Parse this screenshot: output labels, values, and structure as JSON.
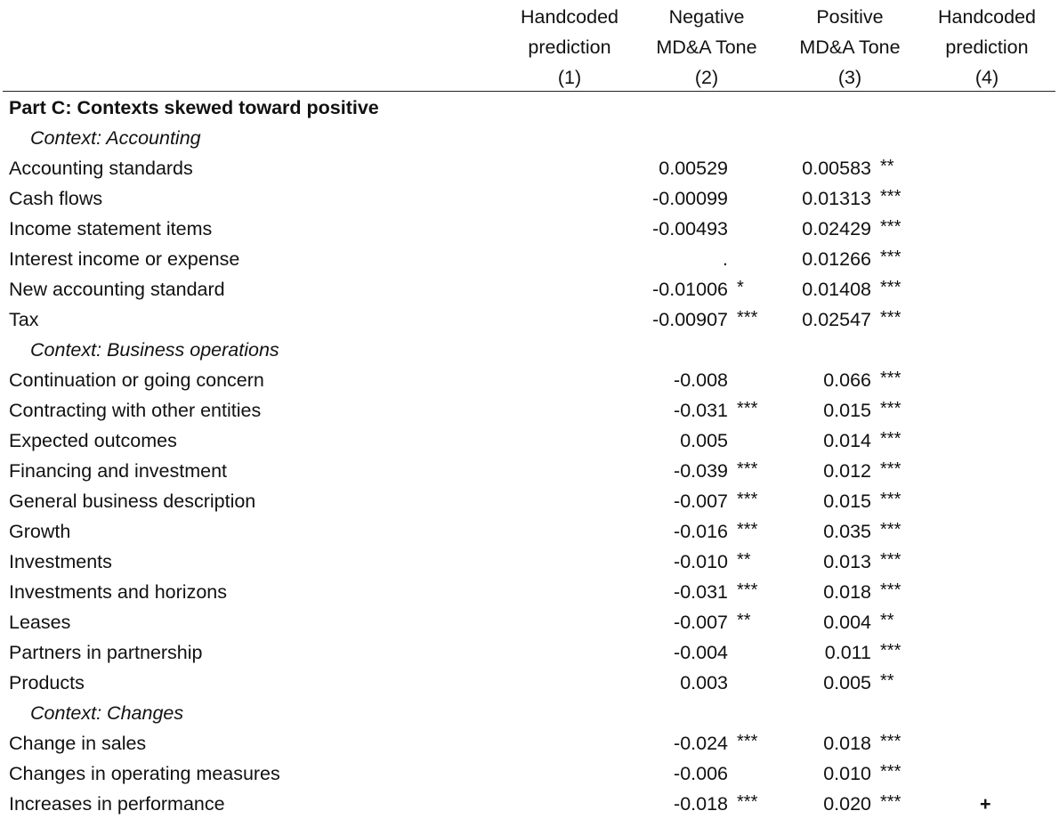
{
  "header": {
    "col1": {
      "line1": "Handcoded",
      "line2": "prediction",
      "line3": "(1)"
    },
    "col2": {
      "line1": "Negative",
      "line2": "MD&A Tone",
      "line3": "(2)"
    },
    "col3": {
      "line1": "Positive",
      "line2": "MD&A Tone",
      "line3": "(3)"
    },
    "col4": {
      "line1": "Handcoded",
      "line2": "prediction",
      "line3": "(4)"
    }
  },
  "rows": [
    {
      "label": "Part C: Contexts skewed toward positive",
      "kind": "section",
      "neg": "",
      "neg_stars": "",
      "pos": "",
      "pos_stars": "",
      "pred": ""
    },
    {
      "label": "Context: Accounting",
      "kind": "context",
      "neg": "",
      "neg_stars": "",
      "pos": "",
      "pos_stars": "",
      "pred": ""
    },
    {
      "label": "Accounting standards",
      "kind": "item",
      "neg": "0.00529",
      "neg_stars": "",
      "pos": "0.00583",
      "pos_stars": "**",
      "pred": ""
    },
    {
      "label": "Cash flows",
      "kind": "item",
      "neg": "-0.00099",
      "neg_stars": "",
      "pos": "0.01313",
      "pos_stars": "***",
      "pred": ""
    },
    {
      "label": "Income statement items",
      "kind": "item",
      "neg": "-0.00493",
      "neg_stars": "",
      "pos": "0.02429",
      "pos_stars": "***",
      "pred": ""
    },
    {
      "label": "Interest income or expense",
      "kind": "item",
      "neg": ".",
      "neg_stars": "",
      "pos": "0.01266",
      "pos_stars": "***",
      "pred": ""
    },
    {
      "label": "New accounting standard",
      "kind": "item",
      "neg": "-0.01006",
      "neg_stars": "*",
      "pos": "0.01408",
      "pos_stars": "***",
      "pred": ""
    },
    {
      "label": "Tax",
      "kind": "item",
      "neg": "-0.00907",
      "neg_stars": "***",
      "pos": "0.02547",
      "pos_stars": "***",
      "pred": ""
    },
    {
      "label": "Context: Business operations",
      "kind": "context",
      "neg": "",
      "neg_stars": "",
      "pos": "",
      "pos_stars": "",
      "pred": ""
    },
    {
      "label": "Continuation or going concern",
      "kind": "item",
      "neg": "-0.008",
      "neg_stars": "",
      "pos": "0.066",
      "pos_stars": "***",
      "pred": ""
    },
    {
      "label": "Contracting with other entities",
      "kind": "item",
      "neg": "-0.031",
      "neg_stars": "***",
      "pos": "0.015",
      "pos_stars": "***",
      "pred": ""
    },
    {
      "label": "Expected outcomes",
      "kind": "item",
      "neg": "0.005",
      "neg_stars": "",
      "pos": "0.014",
      "pos_stars": "***",
      "pred": ""
    },
    {
      "label": "Financing and investment",
      "kind": "item",
      "neg": "-0.039",
      "neg_stars": "***",
      "pos": "0.012",
      "pos_stars": "***",
      "pred": ""
    },
    {
      "label": "General business description",
      "kind": "item",
      "neg": "-0.007",
      "neg_stars": "***",
      "pos": "0.015",
      "pos_stars": "***",
      "pred": ""
    },
    {
      "label": "Growth",
      "kind": "item",
      "neg": "-0.016",
      "neg_stars": "***",
      "pos": "0.035",
      "pos_stars": "***",
      "pred": ""
    },
    {
      "label": "Investments",
      "kind": "item",
      "neg": "-0.010",
      "neg_stars": "**",
      "pos": "0.013",
      "pos_stars": "***",
      "pred": ""
    },
    {
      "label": "Investments and horizons",
      "kind": "item",
      "neg": "-0.031",
      "neg_stars": "***",
      "pos": "0.018",
      "pos_stars": "***",
      "pred": ""
    },
    {
      "label": "Leases",
      "kind": "item",
      "neg": "-0.007",
      "neg_stars": "**",
      "pos": "0.004",
      "pos_stars": "**",
      "pred": ""
    },
    {
      "label": "Partners in partnership",
      "kind": "item",
      "neg": "-0.004",
      "neg_stars": "",
      "pos": "0.011",
      "pos_stars": "***",
      "pred": ""
    },
    {
      "label": "Products",
      "kind": "item",
      "neg": "0.003",
      "neg_stars": "",
      "pos": "0.005",
      "pos_stars": "**",
      "pred": ""
    },
    {
      "label": "Context: Changes",
      "kind": "context",
      "neg": "",
      "neg_stars": "",
      "pos": "",
      "pos_stars": "",
      "pred": ""
    },
    {
      "label": "Change in sales",
      "kind": "item",
      "neg": "-0.024",
      "neg_stars": "***",
      "pos": "0.018",
      "pos_stars": "***",
      "pred": ""
    },
    {
      "label": "Changes in operating measures",
      "kind": "item",
      "neg": "-0.006",
      "neg_stars": "",
      "pos": "0.010",
      "pos_stars": "***",
      "pred": ""
    },
    {
      "label": "Increases in performance",
      "kind": "item",
      "neg": "-0.018",
      "neg_stars": "***",
      "pos": "0.020",
      "pos_stars": "***",
      "pred": "+"
    }
  ]
}
